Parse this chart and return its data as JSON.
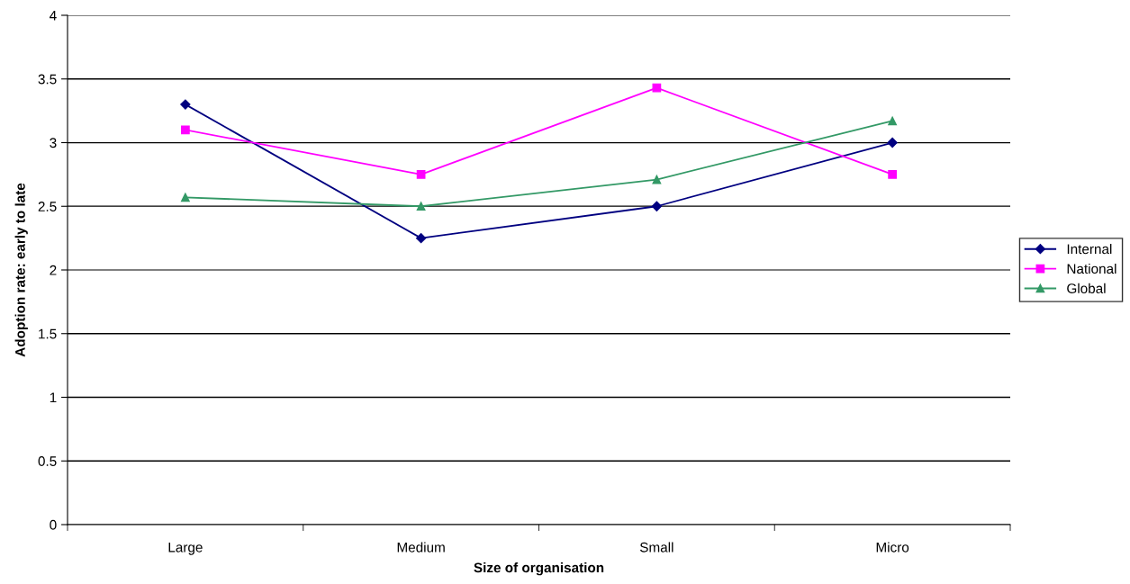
{
  "chart_data": {
    "type": "line",
    "xlabel": "Size of organisation",
    "ylabel": "Adoption rate: early to late",
    "categories": [
      "Large",
      "Medium",
      "Small",
      "Micro"
    ],
    "series": [
      {
        "name": "Internal",
        "color": "#000080",
        "marker": "diamond",
        "values": [
          3.3,
          2.25,
          2.5,
          3.0
        ]
      },
      {
        "name": "National",
        "color": "#ff00ff",
        "marker": "square",
        "values": [
          3.1,
          2.75,
          3.43,
          2.75
        ]
      },
      {
        "name": "Global",
        "color": "#339966",
        "marker": "triangle",
        "values": [
          2.57,
          2.5,
          2.71,
          3.17
        ]
      }
    ],
    "ylim": [
      0,
      4
    ],
    "yticks": [
      0,
      0.5,
      1,
      1.5,
      2,
      2.5,
      3,
      3.5,
      4
    ],
    "grid": "y",
    "legend": "right"
  }
}
